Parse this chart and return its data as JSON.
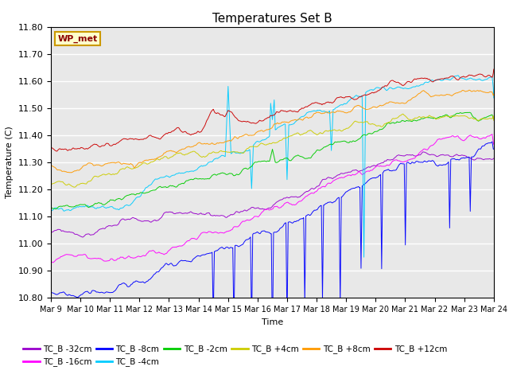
{
  "title": "Temperatures Set B",
  "xlabel": "Time",
  "ylabel": "Temperature (C)",
  "ylim": [
    10.8,
    11.8
  ],
  "y_ticks": [
    10.8,
    10.9,
    11.0,
    11.1,
    11.2,
    11.3,
    11.4,
    11.5,
    11.6,
    11.7,
    11.8
  ],
  "x_tick_labels": [
    "Mar 9",
    "Mar 10",
    "Mar 11",
    "Mar 12",
    "Mar 13",
    "Mar 14",
    "Mar 15",
    "Mar 16",
    "Mar 17",
    "Mar 18",
    "Mar 19",
    "Mar 20",
    "Mar 21",
    "Mar 22",
    "Mar 23",
    "Mar 24"
  ],
  "series": [
    {
      "label": "TC_B -32cm",
      "color": "#9900cc"
    },
    {
      "label": "TC_B -16cm",
      "color": "#ff00ff"
    },
    {
      "label": "TC_B -8cm",
      "color": "#0000ff"
    },
    {
      "label": "TC_B -4cm",
      "color": "#00ccff"
    },
    {
      "label": "TC_B -2cm",
      "color": "#00cc00"
    },
    {
      "label": "TC_B +4cm",
      "color": "#cccc00"
    },
    {
      "label": "TC_B +8cm",
      "color": "#ff9900"
    },
    {
      "label": "TC_B +12cm",
      "color": "#cc0000"
    }
  ],
  "legend_label": "WP_met",
  "background_color": "#e8e8e8",
  "grid_color": "#ffffff",
  "n_points": 2000
}
